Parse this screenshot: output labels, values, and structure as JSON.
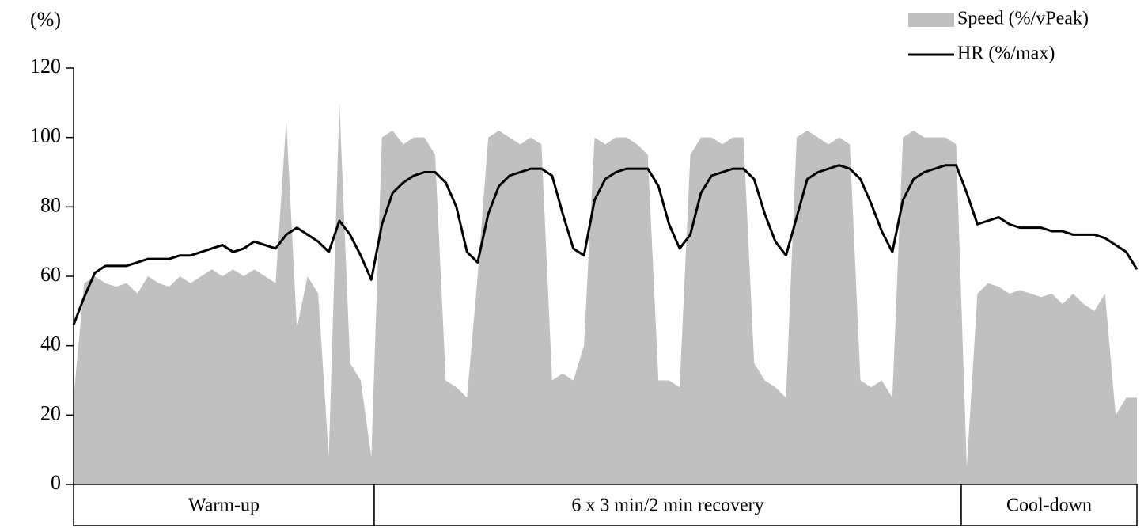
{
  "chart_data": {
    "type": "area-line",
    "y_label": "(%)",
    "ylim": [
      0,
      120
    ],
    "yticks": [
      0,
      20,
      40,
      60,
      80,
      100,
      120
    ],
    "legend": "top-right",
    "phases": [
      "Warm-up",
      "6 x 3 min/2 min recovery",
      "Cool-down"
    ],
    "series": [
      {
        "name": "Speed (%/vPeak)",
        "kind": "area",
        "color": "#c0c0c0",
        "values": [
          25,
          58,
          60,
          58,
          57,
          58,
          55,
          60,
          58,
          57,
          60,
          58,
          60,
          62,
          60,
          62,
          60,
          62,
          60,
          58,
          105,
          45,
          60,
          55,
          8,
          110,
          35,
          30,
          8,
          100,
          102,
          98,
          100,
          100,
          95,
          30,
          28,
          25,
          60,
          100,
          102,
          100,
          98,
          100,
          98,
          30,
          32,
          30,
          40,
          100,
          98,
          100,
          100,
          98,
          95,
          30,
          30,
          28,
          95,
          100,
          100,
          98,
          100,
          100,
          35,
          30,
          28,
          25,
          100,
          102,
          100,
          98,
          100,
          98,
          30,
          28,
          30,
          25,
          100,
          102,
          100,
          100,
          100,
          98,
          5,
          55,
          58,
          57,
          55,
          56,
          55,
          54,
          55,
          52,
          55,
          52,
          50,
          55,
          20,
          25,
          25
        ]
      },
      {
        "name": "HR (%/max)",
        "kind": "line",
        "color": "#000000",
        "values": [
          46,
          54,
          61,
          63,
          63,
          63,
          64,
          65,
          65,
          65,
          66,
          66,
          67,
          68,
          69,
          67,
          68,
          70,
          69,
          68,
          72,
          74,
          72,
          70,
          67,
          76,
          72,
          66,
          59,
          75,
          84,
          87,
          89,
          90,
          90,
          87,
          80,
          67,
          64,
          78,
          86,
          89,
          90,
          91,
          91,
          89,
          78,
          68,
          66,
          82,
          88,
          90,
          91,
          91,
          91,
          86,
          75,
          68,
          72,
          84,
          89,
          90,
          91,
          91,
          88,
          78,
          70,
          66,
          77,
          88,
          90,
          91,
          92,
          91,
          88,
          81,
          73,
          67,
          82,
          88,
          90,
          91,
          92,
          92,
          84,
          75,
          76,
          77,
          75,
          74,
          74,
          74,
          73,
          73,
          72,
          72,
          72,
          71,
          69,
          67,
          62
        ]
      }
    ]
  }
}
